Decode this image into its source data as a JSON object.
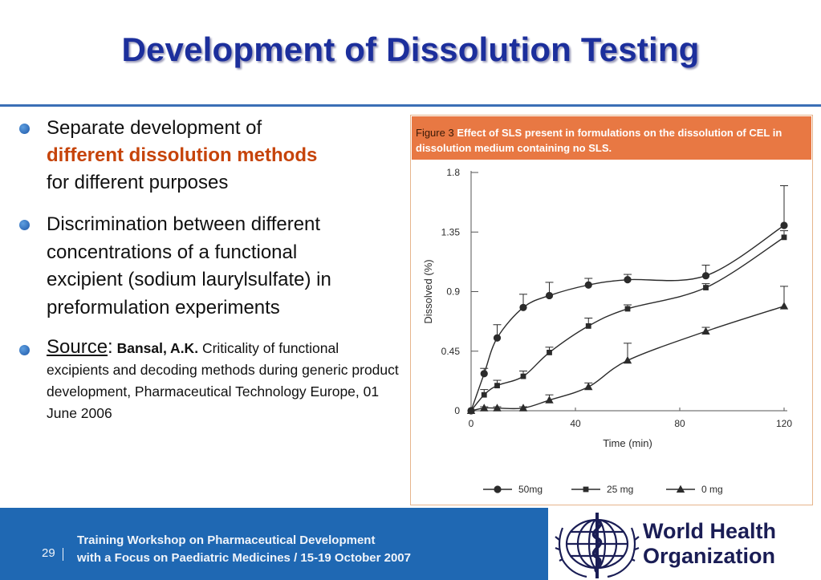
{
  "slide": {
    "title": "Development of Dissolution Testing",
    "bullets": [
      {
        "line1": "Separate development of",
        "highlight": "different dissolution methods",
        "line3": "for different purposes"
      },
      {
        "text": "Discrimination between different concentrations of a functional excipient (sodium laurylsulfate) in preformulation experiments"
      },
      {
        "source_label": "Source",
        "source_colon": ":",
        "author": "Bansal, A.K.",
        "citation": "Criticality of functional excipients and decoding methods during generic product development, Pharmaceutical Technology Europe, 01 June 2006"
      }
    ]
  },
  "figure": {
    "caption_label": "Figure 3",
    "caption_text": "Effect of SLS present in formulations on the dissolution of CEL in dissolution medium containing no SLS."
  },
  "chart_data": {
    "type": "line",
    "title": "",
    "xlabel": "Time (min)",
    "ylabel": "Dissolved (%)",
    "xlim": [
      0,
      120
    ],
    "ylim": [
      0,
      1.8
    ],
    "xticks": [
      0,
      40,
      80,
      120
    ],
    "yticks": [
      0,
      0.45,
      0.9,
      1.35,
      1.8
    ],
    "ytick_labels": [
      "0",
      "0.45",
      "0.9",
      "1.35",
      "1.8"
    ],
    "grid": false,
    "legend_position": "bottom",
    "series": [
      {
        "name": "50mg",
        "marker": "circle",
        "x": [
          0,
          5,
          10,
          20,
          30,
          45,
          60,
          90,
          120
        ],
        "y": [
          0,
          0.28,
          0.55,
          0.78,
          0.87,
          0.95,
          0.99,
          1.02,
          1.4
        ],
        "err": [
          0,
          0.04,
          0.1,
          0.1,
          0.1,
          0.05,
          0.04,
          0.08,
          0.3
        ]
      },
      {
        "name": "25 mg",
        "marker": "square",
        "x": [
          0,
          5,
          10,
          20,
          30,
          45,
          60,
          90,
          120
        ],
        "y": [
          0,
          0.12,
          0.19,
          0.26,
          0.44,
          0.64,
          0.77,
          0.93,
          1.31
        ],
        "err": [
          0,
          0.04,
          0.04,
          0.04,
          0.04,
          0.06,
          0.03,
          0.03,
          0.05
        ]
      },
      {
        "name": "0 mg",
        "marker": "triangle",
        "x": [
          0,
          5,
          10,
          20,
          30,
          45,
          60,
          90,
          120
        ],
        "y": [
          0,
          0.02,
          0.02,
          0.02,
          0.08,
          0.18,
          0.38,
          0.6,
          0.79
        ],
        "err": [
          0,
          0.01,
          0.01,
          0.01,
          0.04,
          0.03,
          0.13,
          0.03,
          0.15
        ]
      }
    ]
  },
  "footer": {
    "page_number": "29",
    "line1": "Training Workshop on Pharmaceutical Development",
    "line2": "with a Focus on Paediatric Medicines / 15-19 October 2007",
    "org_line1": "World Health",
    "org_line2": "Organization"
  },
  "colors": {
    "title": "#1c2f9c",
    "accent_orange": "#c6440a",
    "figure_header": "#e87843",
    "footer_bg": "#1f68b3",
    "who_navy": "#1a1d55"
  },
  "icons": [
    "bullet-dot-icon",
    "who-emblem-icon"
  ]
}
